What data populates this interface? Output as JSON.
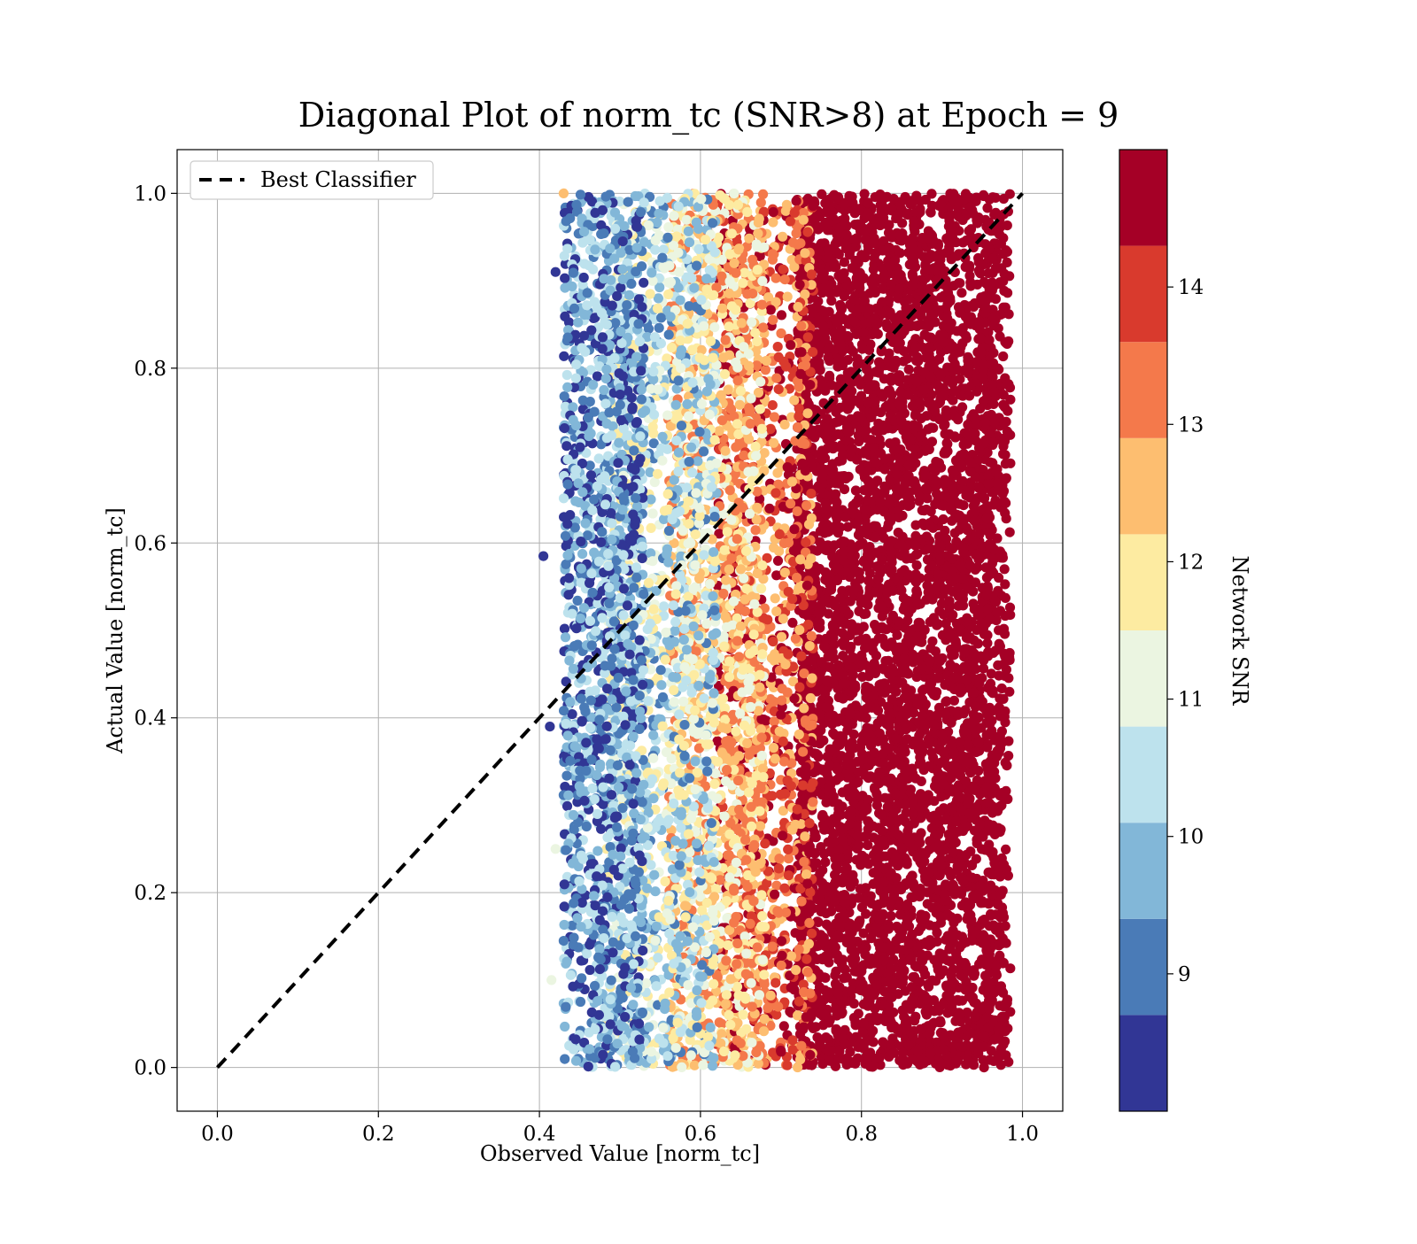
{
  "chart_data": {
    "type": "scatter",
    "title": "Diagonal Plot of norm_tc (SNR>8) at Epoch = 9",
    "xlabel": "Observed Value [norm_tc]",
    "ylabel": "Actual Value [norm_tc]",
    "xlim": [
      -0.05,
      1.05
    ],
    "ylim": [
      -0.05,
      1.05
    ],
    "x_ticks": [
      "0.0",
      "0.2",
      "0.4",
      "0.6",
      "0.8",
      "1.0"
    ],
    "y_ticks": [
      "0.0",
      "0.2",
      "0.4",
      "0.6",
      "0.8",
      "1.0"
    ],
    "grid": true,
    "legend": {
      "position": "top-left",
      "entries": [
        {
          "label": "Best Classifier",
          "style": "dashed",
          "color": "#000000"
        }
      ]
    },
    "reference_line": {
      "name": "Best Classifier",
      "x": [
        0.0,
        1.0
      ],
      "y": [
        0.0,
        1.0
      ]
    },
    "colorbar": {
      "label": "Network SNR",
      "range": [
        8,
        15
      ],
      "ticks": [
        "9",
        "10",
        "11",
        "12",
        "13",
        "14"
      ],
      "bins": [
        {
          "from": 8,
          "to": 8.7,
          "color": "#313695"
        },
        {
          "from": 8.7,
          "to": 9.4,
          "color": "#4a7bb7"
        },
        {
          "from": 9.4,
          "to": 10.1,
          "color": "#82b7d8"
        },
        {
          "from": 10.1,
          "to": 10.8,
          "color": "#bde2ed"
        },
        {
          "from": 10.8,
          "to": 11.5,
          "color": "#ebf5e1"
        },
        {
          "from": 11.5,
          "to": 12.2,
          "color": "#fdeba1"
        },
        {
          "from": 12.2,
          "to": 12.9,
          "color": "#fdbe70"
        },
        {
          "from": 12.9,
          "to": 13.6,
          "color": "#f4794b"
        },
        {
          "from": 13.6,
          "to": 14.3,
          "color": "#d93a2d"
        },
        {
          "from": 14.3,
          "to": 15,
          "color": "#a50026"
        }
      ]
    },
    "scatter_distribution": {
      "y_range": [
        0.0,
        1.0
      ],
      "x_range": [
        0.4,
        0.99
      ],
      "trend": "low SNR (blue) at observed 0.43-0.6, mid SNR (yellow/orange) at 0.6-0.72, high SNR (dark red) dense at 0.72-0.99"
    },
    "regions": [
      {
        "x": [
          0.43,
          0.53
        ],
        "y": [
          0.0,
          1.0
        ],
        "snr": [
          8.0,
          10.8
        ]
      },
      {
        "x": [
          0.48,
          0.62
        ],
        "y": [
          0.0,
          1.0
        ],
        "snr": [
          9.0,
          12.2
        ]
      },
      {
        "x": [
          0.56,
          0.68
        ],
        "y": [
          0.0,
          1.0
        ],
        "snr": [
          11.0,
          13.6
        ]
      },
      {
        "x": [
          0.62,
          0.74
        ],
        "y": [
          0.0,
          1.0
        ],
        "snr": [
          12.2,
          15.0
        ]
      },
      {
        "x": [
          0.72,
          0.98
        ],
        "y": [
          0.0,
          1.0
        ],
        "snr": [
          14.3,
          15.0
        ]
      }
    ]
  }
}
